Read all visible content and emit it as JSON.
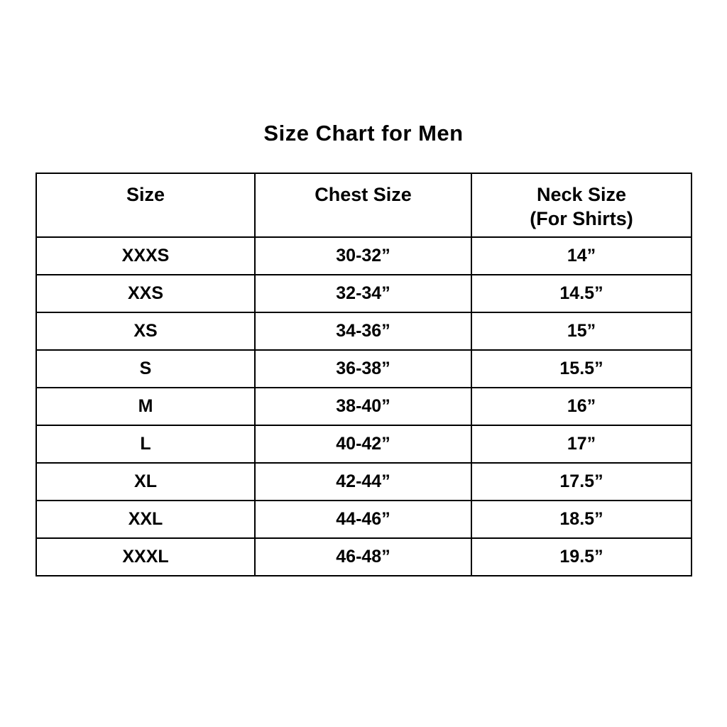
{
  "title": "Size Chart for Men",
  "colors": {
    "background": "#ffffff",
    "border": "#000000",
    "text": "#000000"
  },
  "chart_data": {
    "type": "table",
    "title": "Size Chart for Men",
    "columns": [
      {
        "label": "Size",
        "sublabel": ""
      },
      {
        "label": "Chest Size",
        "sublabel": ""
      },
      {
        "label": "Neck Size",
        "sublabel": "(For Shirts)"
      }
    ],
    "rows": [
      [
        "XXXS",
        "30-32”",
        "14”"
      ],
      [
        "XXS",
        "32-34”",
        "14.5”"
      ],
      [
        "XS",
        "34-36”",
        "15”"
      ],
      [
        "S",
        "36-38”",
        "15.5”"
      ],
      [
        "M",
        "38-40”",
        "16”"
      ],
      [
        "L",
        "40-42”",
        "17”"
      ],
      [
        "XL",
        "42-44”",
        "17.5”"
      ],
      [
        "XXL",
        "44-46”",
        "18.5”"
      ],
      [
        "XXXL",
        "46-48”",
        "19.5”"
      ]
    ]
  }
}
